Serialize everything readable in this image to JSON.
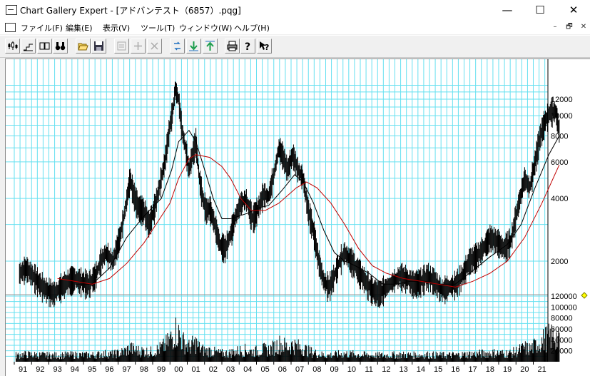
{
  "window": {
    "title": "Chart Gallery Expert - [アドバンテスト（6857）.pqg]",
    "minimize": "—",
    "maximize": "☐",
    "close": "✕"
  },
  "menu": {
    "items": [
      "ファイル(F)",
      "編集(E)",
      "表示(V)",
      "ツール(T)",
      "ウィンドウ(W)",
      "ヘルプ(H)"
    ],
    "mdi": [
      "–",
      "🗗",
      "✕"
    ]
  },
  "toolbar": {
    "buttons": [
      "candlestick-icon",
      "step-chart-icon",
      "split-view-icon",
      "binoculars-icon",
      "open-folder-icon",
      "save-disk-icon",
      "properties-icon",
      "add-icon",
      "delete-icon",
      "refresh-icon",
      "download-icon",
      "upload-icon",
      "print-icon",
      "help-icon",
      "context-help-icon"
    ]
  },
  "chart_data": {
    "type": "line",
    "price_axis": {
      "ticks": [
        2000,
        4000,
        6000,
        8000,
        10000,
        12000
      ],
      "tick_labels": [
        "2000",
        "4000",
        "6000",
        "8000",
        "10000",
        "12000"
      ],
      "scale": "log"
    },
    "volume_axis": {
      "ticks": [
        20000,
        40000,
        60000,
        80000,
        100000,
        120000
      ],
      "tick_labels": [
        "20000",
        "40000",
        "60000",
        "80000",
        "100000",
        "120000"
      ]
    },
    "x_tick_labels": [
      "91",
      "92",
      "93",
      "94",
      "95",
      "96",
      "97",
      "98",
      "99",
      "00",
      "01",
      "02",
      "03",
      "04",
      "05",
      "06",
      "07",
      "08",
      "09",
      "10",
      "11",
      "12",
      "13",
      "14",
      "15",
      "16",
      "17",
      "18",
      "19",
      "20",
      "21"
    ],
    "grid": true,
    "colors": {
      "grid": "#66e0f0",
      "price": "#000000",
      "ma_short": "#000000",
      "ma_long": "#c00000",
      "marker": "#ffff00"
    },
    "series": [
      {
        "values": [
          [
            1990.8,
            1750
          ],
          [
            1991.2,
            1850
          ],
          [
            1991.6,
            1700
          ],
          [
            1992.0,
            1550
          ],
          [
            1992.4,
            1450
          ],
          [
            1992.8,
            1400
          ],
          [
            1993.2,
            1500
          ],
          [
            1993.6,
            1600
          ],
          [
            1994.0,
            1650
          ],
          [
            1994.4,
            1600
          ],
          [
            1994.8,
            1550
          ],
          [
            1995.2,
            1700
          ],
          [
            1995.5,
            2000
          ],
          [
            1995.8,
            2200
          ],
          [
            1996.2,
            2000
          ],
          [
            1996.6,
            2600
          ],
          [
            1996.9,
            3500
          ],
          [
            1997.2,
            5000
          ],
          [
            1997.4,
            4200
          ],
          [
            1997.7,
            3600
          ],
          [
            1998.0,
            3500
          ],
          [
            1998.3,
            3000
          ],
          [
            1998.6,
            3600
          ],
          [
            1998.9,
            4600
          ],
          [
            1999.2,
            6000
          ],
          [
            1999.5,
            9000
          ],
          [
            1999.7,
            11000
          ],
          [
            1999.8,
            13500
          ],
          [
            2000.0,
            12000
          ],
          [
            2000.2,
            8500
          ],
          [
            2000.4,
            7000
          ],
          [
            2000.6,
            5500
          ],
          [
            2000.8,
            6500
          ],
          [
            2001.0,
            7500
          ],
          [
            2001.2,
            5000
          ],
          [
            2001.4,
            4000
          ],
          [
            2001.6,
            3500
          ],
          [
            2001.8,
            3600
          ],
          [
            2002.1,
            3000
          ],
          [
            2002.4,
            2400
          ],
          [
            2002.7,
            2300
          ],
          [
            2003.0,
            2700
          ],
          [
            2003.3,
            3300
          ],
          [
            2003.6,
            3800
          ],
          [
            2003.9,
            4000
          ],
          [
            2004.1,
            3500
          ],
          [
            2004.3,
            3200
          ],
          [
            2004.6,
            3600
          ],
          [
            2004.9,
            4200
          ],
          [
            2005.2,
            4100
          ],
          [
            2005.5,
            5200
          ],
          [
            2005.8,
            7000
          ],
          [
            2006.0,
            6500
          ],
          [
            2006.3,
            5500
          ],
          [
            2006.6,
            6500
          ],
          [
            2006.9,
            5500
          ],
          [
            2007.2,
            5000
          ],
          [
            2007.5,
            3500
          ],
          [
            2007.8,
            2800
          ],
          [
            2008.1,
            2000
          ],
          [
            2008.4,
            1600
          ],
          [
            2008.7,
            1500
          ],
          [
            2009.0,
            1700
          ],
          [
            2009.3,
            2000
          ],
          [
            2009.6,
            2200
          ],
          [
            2010.0,
            2000
          ],
          [
            2010.4,
            1800
          ],
          [
            2010.8,
            1600
          ],
          [
            2011.2,
            1450
          ],
          [
            2011.6,
            1400
          ],
          [
            2012.0,
            1500
          ],
          [
            2012.4,
            1600
          ],
          [
            2012.8,
            1700
          ],
          [
            2013.2,
            1650
          ],
          [
            2013.6,
            1550
          ],
          [
            2014.0,
            1600
          ],
          [
            2014.4,
            1700
          ],
          [
            2014.8,
            1600
          ],
          [
            2015.2,
            1450
          ],
          [
            2015.6,
            1500
          ],
          [
            2016.0,
            1550
          ],
          [
            2016.4,
            1700
          ],
          [
            2016.8,
            2000
          ],
          [
            2017.2,
            2100
          ],
          [
            2017.6,
            2300
          ],
          [
            2018.0,
            2600
          ],
          [
            2018.4,
            2500
          ],
          [
            2018.8,
            2300
          ],
          [
            2019.2,
            2500
          ],
          [
            2019.6,
            3600
          ],
          [
            2020.0,
            5000
          ],
          [
            2020.3,
            4500
          ],
          [
            2020.6,
            6000
          ],
          [
            2020.9,
            8000
          ],
          [
            2021.2,
            9500
          ],
          [
            2021.5,
            10500
          ],
          [
            2021.8,
            10500
          ],
          [
            2022.0,
            8500
          ]
        ]
      },
      {
        "values": [
          [
            1994.0,
            1550
          ],
          [
            1995.0,
            1550
          ],
          [
            1996.0,
            1850
          ],
          [
            1997.0,
            2600
          ],
          [
            1998.0,
            3300
          ],
          [
            1999.0,
            4000
          ],
          [
            1999.6,
            5500
          ],
          [
            2000.0,
            7500
          ],
          [
            2000.6,
            8500
          ],
          [
            2001.0,
            7500
          ],
          [
            2001.5,
            5500
          ],
          [
            2002.0,
            4000
          ],
          [
            2002.5,
            3200
          ],
          [
            2003.0,
            3200
          ],
          [
            2003.5,
            3300
          ],
          [
            2004.0,
            3400
          ],
          [
            2004.6,
            3600
          ],
          [
            2005.2,
            3700
          ],
          [
            2006.0,
            4400
          ],
          [
            2006.7,
            5200
          ],
          [
            2007.2,
            4800
          ],
          [
            2007.8,
            3800
          ],
          [
            2008.4,
            2800
          ],
          [
            2009.0,
            2200
          ],
          [
            2009.6,
            2000
          ],
          [
            2010.2,
            1900
          ],
          [
            2011.0,
            1750
          ],
          [
            2011.8,
            1550
          ],
          [
            2012.6,
            1550
          ],
          [
            2013.4,
            1600
          ],
          [
            2014.2,
            1600
          ],
          [
            2015.0,
            1550
          ],
          [
            2016.0,
            1550
          ],
          [
            2017.0,
            1800
          ],
          [
            2018.0,
            2100
          ],
          [
            2019.0,
            2400
          ],
          [
            2019.8,
            3000
          ],
          [
            2020.6,
            4500
          ],
          [
            2021.4,
            6500
          ],
          [
            2022.0,
            8000
          ]
        ]
      },
      {
        "values": [
          [
            1993.0,
            1650
          ],
          [
            1994.0,
            1600
          ],
          [
            1995.0,
            1550
          ],
          [
            1996.0,
            1650
          ],
          [
            1997.0,
            1950
          ],
          [
            1998.0,
            2450
          ],
          [
            1998.8,
            3100
          ],
          [
            1999.5,
            3800
          ],
          [
            2000.0,
            5000
          ],
          [
            2000.6,
            6200
          ],
          [
            2001.0,
            6500
          ],
          [
            2001.8,
            6300
          ],
          [
            2002.5,
            5700
          ],
          [
            2003.0,
            5000
          ],
          [
            2003.6,
            4000
          ],
          [
            2004.2,
            3500
          ],
          [
            2005.0,
            3500
          ],
          [
            2005.8,
            3800
          ],
          [
            2006.8,
            4500
          ],
          [
            2007.4,
            4800
          ],
          [
            2008.0,
            4500
          ],
          [
            2008.8,
            3800
          ],
          [
            2009.6,
            3000
          ],
          [
            2010.4,
            2300
          ],
          [
            2011.2,
            1900
          ],
          [
            2012.0,
            1750
          ],
          [
            2013.0,
            1650
          ],
          [
            2014.0,
            1600
          ],
          [
            2015.0,
            1550
          ],
          [
            2016.0,
            1500
          ],
          [
            2017.0,
            1600
          ],
          [
            2018.0,
            1750
          ],
          [
            2019.0,
            2000
          ],
          [
            2020.0,
            2600
          ],
          [
            2021.0,
            3800
          ],
          [
            2022.0,
            5800
          ]
        ]
      }
    ]
  }
}
